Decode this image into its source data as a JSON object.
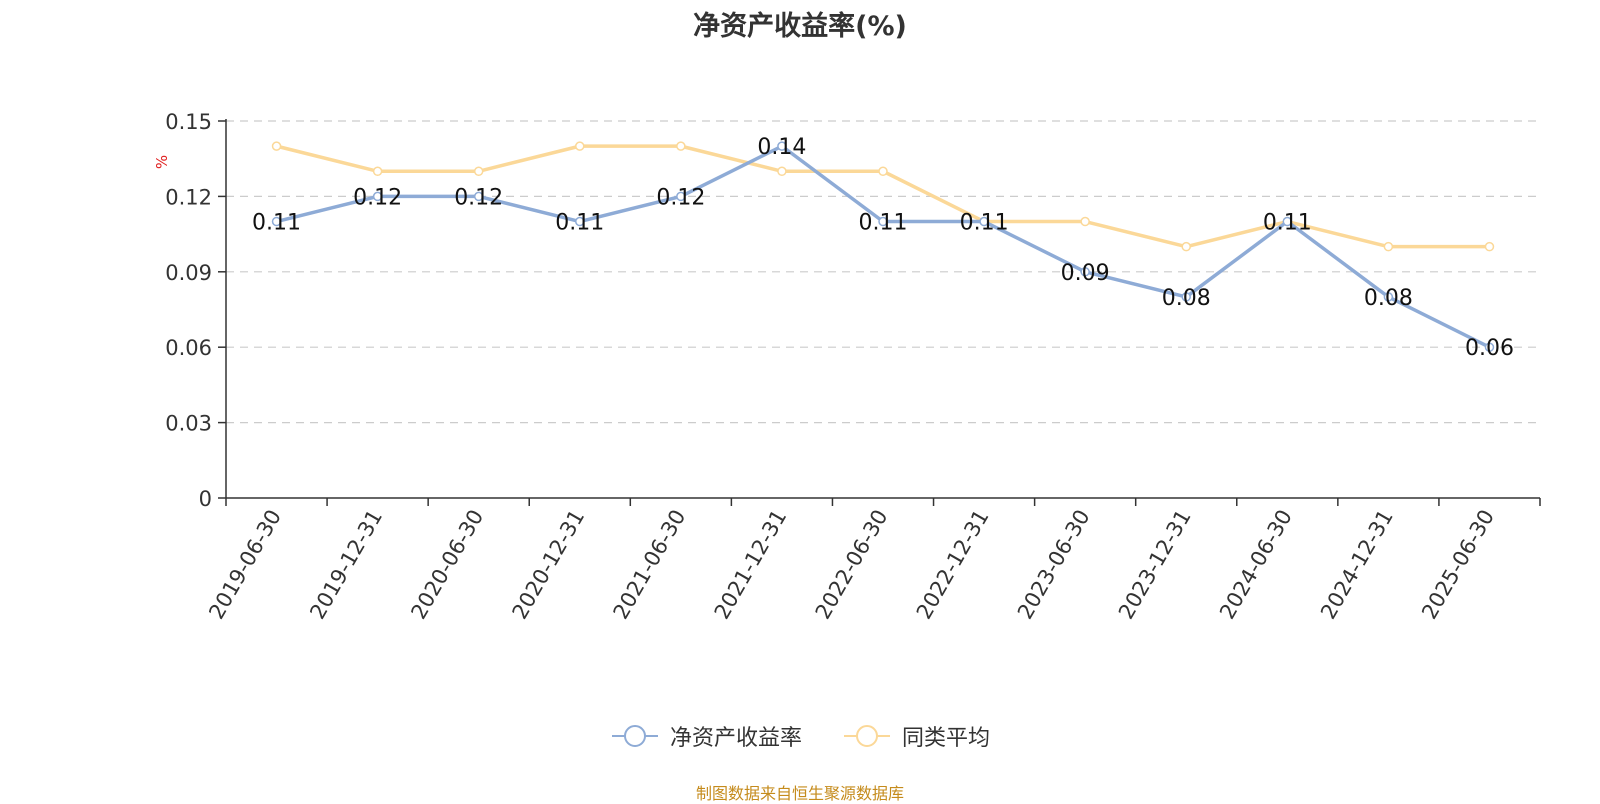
{
  "colors": {
    "series1": "#8eabd6",
    "series2": "#fbd898",
    "axis": "#333333",
    "grid": "#cccccc",
    "unit": "#e02020",
    "source": "#c58b1c"
  },
  "source_note": "制图数据来自恒生聚源数据库",
  "chart_data": {
    "type": "line",
    "title": "净资产收益率(%)",
    "ylabel": "%",
    "xlabel": "",
    "ylim": [
      0,
      0.15
    ],
    "yticks": [
      "0",
      "0.03",
      "0.06",
      "0.09",
      "0.12",
      "0.15"
    ],
    "grid": true,
    "legend_position": "bottom",
    "categories": [
      "2019-06-30",
      "2019-12-31",
      "2020-06-30",
      "2020-12-31",
      "2021-06-30",
      "2021-12-31",
      "2022-06-30",
      "2022-12-31",
      "2023-06-30",
      "2023-12-31",
      "2024-06-30",
      "2024-12-31",
      "2025-06-30"
    ],
    "series": [
      {
        "name": "净资产收益率",
        "values": [
          0.11,
          0.12,
          0.12,
          0.11,
          0.12,
          0.14,
          0.11,
          0.11,
          0.09,
          0.08,
          0.11,
          0.08,
          0.06
        ],
        "labels": [
          "0.11",
          "0.12",
          "0.12",
          "0.11",
          "0.12",
          "0.14",
          "0.11",
          "0.11",
          "0.09",
          "0.08",
          "0.11",
          "0.08",
          "0.06"
        ]
      },
      {
        "name": "同类平均",
        "values": [
          0.14,
          0.13,
          0.13,
          0.14,
          0.14,
          0.13,
          0.13,
          0.11,
          0.11,
          0.1,
          0.11,
          0.1,
          0.1
        ]
      }
    ]
  }
}
